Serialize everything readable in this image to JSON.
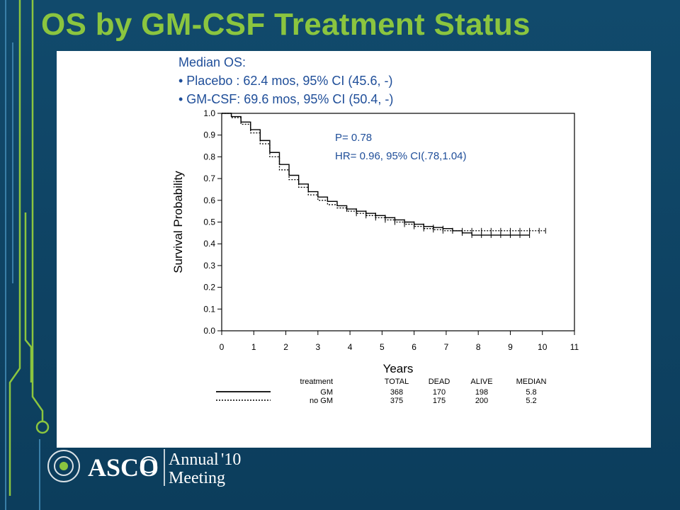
{
  "slide": {
    "title": "OS by GM-CSF Treatment Status",
    "median_heading": "Median OS:",
    "median_lines": [
      "• Placebo : 62.4 mos, 95% CI (45.6, -)",
      "• GM-CSF: 69.6 mos, 95% CI (50.4, -)"
    ],
    "stats": [
      "P= 0.78",
      "HR= 0.96, 95% CI(.78,1.04)"
    ]
  },
  "colors": {
    "title": "#8bc53f",
    "text_blue": "#1f4e99",
    "background": "#0f4566",
    "accent": "#8bc53f"
  },
  "footer": {
    "logo_text": "ASCO",
    "annual": "Annual",
    "year": "'10",
    "meeting": "Meeting"
  },
  "chart_data": {
    "type": "line",
    "title": "",
    "xlabel": "Years",
    "ylabel": "Survival Probability",
    "xlim": [
      0,
      11
    ],
    "ylim": [
      0,
      1
    ],
    "x_ticks": [
      0,
      1,
      2,
      3,
      4,
      5,
      6,
      7,
      8,
      9,
      10,
      11
    ],
    "y_ticks": [
      0.0,
      0.1,
      0.2,
      0.3,
      0.4,
      0.5,
      0.6,
      0.7,
      0.8,
      0.9,
      1.0
    ],
    "y_tick_labels": [
      "0.0",
      "0.1",
      "0.2",
      "0.3",
      "0.4",
      "0.5",
      "0.6",
      "0.7",
      "0.8",
      "0.9",
      "1.0"
    ],
    "grid": false,
    "series": [
      {
        "name": "GM",
        "style": "solid",
        "x": [
          0,
          0.3,
          0.6,
          0.9,
          1.2,
          1.5,
          1.8,
          2.1,
          2.4,
          2.7,
          3.0,
          3.3,
          3.6,
          3.9,
          4.2,
          4.5,
          4.8,
          5.1,
          5.4,
          5.7,
          6.0,
          6.3,
          6.6,
          6.9,
          7.2,
          7.5,
          7.8,
          8.1,
          8.4,
          8.7,
          9.0,
          9.3,
          9.6
        ],
        "y": [
          1.0,
          0.985,
          0.96,
          0.925,
          0.875,
          0.82,
          0.765,
          0.715,
          0.675,
          0.64,
          0.615,
          0.595,
          0.575,
          0.56,
          0.55,
          0.54,
          0.53,
          0.52,
          0.51,
          0.5,
          0.49,
          0.48,
          0.475,
          0.47,
          0.46,
          0.45,
          0.44,
          0.44,
          0.44,
          0.44,
          0.44,
          0.44,
          0.44
        ]
      },
      {
        "name": "no GM",
        "style": "dotted",
        "x": [
          0,
          0.3,
          0.6,
          0.9,
          1.2,
          1.5,
          1.8,
          2.1,
          2.4,
          2.7,
          3.0,
          3.3,
          3.6,
          3.9,
          4.2,
          4.5,
          4.8,
          5.1,
          5.4,
          5.7,
          6.0,
          6.3,
          6.6,
          6.9,
          7.2,
          7.5,
          7.8,
          8.1,
          8.4,
          8.7,
          9.0,
          9.3,
          9.6,
          9.9,
          10.1
        ],
        "y": [
          1.0,
          0.98,
          0.95,
          0.91,
          0.86,
          0.8,
          0.74,
          0.695,
          0.66,
          0.625,
          0.6,
          0.58,
          0.565,
          0.55,
          0.54,
          0.53,
          0.52,
          0.51,
          0.5,
          0.49,
          0.48,
          0.47,
          0.465,
          0.46,
          0.46,
          0.46,
          0.46,
          0.46,
          0.46,
          0.46,
          0.46,
          0.46,
          0.46,
          0.46,
          0.46
        ]
      }
    ],
    "table": {
      "headers": [
        "treatment",
        "TOTAL",
        "DEAD",
        "ALIVE",
        "MEDIAN"
      ],
      "rows": [
        {
          "treatment": "GM",
          "total": "368",
          "dead": "170",
          "alive": "198",
          "median": "5.8"
        },
        {
          "treatment": "no GM",
          "total": "375",
          "dead": "175",
          "alive": "200",
          "median": "5.2"
        }
      ]
    }
  }
}
